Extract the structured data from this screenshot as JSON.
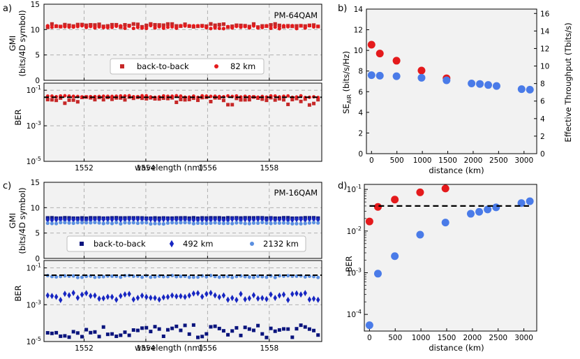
{
  "colors": {
    "red_b2b": "#c62828",
    "red_82": "#e41a1c",
    "blue": "#4a7be8",
    "navy": "#0a147d",
    "darkblue": "#1726c2",
    "lightblue": "#5b8fe0",
    "grid": "#a8a8a8",
    "panel_bg": "#f2f2f2"
  },
  "chart_data": [
    {
      "id": "a_gmi",
      "type": "scatter",
      "panel_label": "a)",
      "annotation": "PM-64QAM",
      "ylabel": "GMI",
      "ylabel2": "(bits/4D symbol)",
      "xlim": [
        1550.7,
        1559.7
      ],
      "ylim": [
        0,
        15
      ],
      "yticks": [
        0,
        5,
        10,
        15
      ],
      "xticks": [
        1552,
        1554,
        1556,
        1558
      ],
      "legend": [
        "back-to-back",
        "82 km"
      ],
      "series": [
        {
          "name": "back-to-back",
          "marker": "square",
          "color_key": "red_b2b",
          "center": 10.8,
          "spread": 0.35
        },
        {
          "name": "82 km",
          "marker": "circle",
          "color_key": "red_82",
          "center": 10.5,
          "spread": 0.3
        }
      ]
    },
    {
      "id": "a_ber",
      "type": "scatter",
      "ylabel": "BER",
      "yscale": "log",
      "ylim_exp": [
        -5,
        -0.6
      ],
      "yticks": [
        "10^-5",
        "10^-3",
        "10^-1"
      ],
      "xticks": [
        1552,
        1554,
        1556,
        1558
      ],
      "xlabel": "wavelength (nm)",
      "threshold": 0.04,
      "series": [
        {
          "name": "back-to-back",
          "marker": "square",
          "color_key": "red_b2b",
          "center_log": -1.48,
          "spread": 0.1
        },
        {
          "name": "82 km",
          "marker": "circle",
          "color_key": "red_82",
          "center_log": -1.36,
          "spread": 0.05
        }
      ]
    },
    {
      "id": "b",
      "type": "scatter",
      "panel_label": "b)",
      "xlabel": "distance (km)",
      "ylabel": "SE_AIR (bits/s/Hz)",
      "ylabel_main": "SE",
      "ylabel_sub": "AIR",
      "ylabel_rest": " (bits/s/Hz)",
      "ylabel_right": "Effective Throughput (Tbits/s)",
      "xlim": [
        -100,
        3250
      ],
      "ylim": [
        0,
        14
      ],
      "yticks": [
        0,
        2,
        4,
        6,
        8,
        10,
        12,
        14
      ],
      "yticks_right": [
        0,
        2,
        4,
        6,
        8,
        10,
        12,
        14,
        16
      ],
      "xticks": [
        0,
        500,
        1000,
        1500,
        2000,
        2500,
        3000
      ],
      "series": [
        {
          "name": "PM-64QAM",
          "color_key": "red_82",
          "x": [
            0,
            164,
            492,
            984,
            1476
          ],
          "y": [
            10.55,
            9.7,
            9.0,
            8.05,
            7.3
          ]
        },
        {
          "name": "PM-16QAM",
          "color_key": "blue",
          "x": [
            0,
            164,
            492,
            984,
            1476,
            1968,
            2132,
            2296,
            2460,
            2952,
            3116
          ],
          "y": [
            7.6,
            7.55,
            7.5,
            7.35,
            7.1,
            6.8,
            6.75,
            6.65,
            6.55,
            6.25,
            6.2
          ]
        }
      ]
    },
    {
      "id": "c_gmi",
      "type": "scatter",
      "panel_label": "c)",
      "annotation": "PM-16QAM",
      "ylabel": "GMI",
      "ylabel2": "(bits/4D symbol)",
      "xlim": [
        1550.7,
        1559.7
      ],
      "ylim": [
        0,
        15
      ],
      "yticks": [
        0,
        5,
        10,
        15
      ],
      "xticks": [
        1552,
        1554,
        1556,
        1558
      ],
      "legend": [
        "back-to-back",
        "492 km",
        "2132 km"
      ],
      "series": [
        {
          "name": "back-to-back",
          "marker": "square",
          "color_key": "navy",
          "center": 7.95,
          "spread": 0.05
        },
        {
          "name": "492 km",
          "marker": "diamond",
          "color_key": "darkblue",
          "center": 7.65,
          "spread": 0.1
        },
        {
          "name": "2132 km",
          "marker": "circle",
          "color_key": "lightblue",
          "center": 6.95,
          "spread": 0.15
        }
      ]
    },
    {
      "id": "c_ber",
      "type": "scatter",
      "ylabel": "BER",
      "yscale": "log",
      "ylim_exp": [
        -5,
        -0.6
      ],
      "yticks": [
        "10^-5",
        "10^-3",
        "10^-1"
      ],
      "xticks": [
        1552,
        1554,
        1556,
        1558
      ],
      "xlabel": "wavelength (nm)",
      "threshold": 0.04,
      "series": [
        {
          "name": "back-to-back",
          "marker": "square",
          "color_key": "navy",
          "center_log": -4.45,
          "spread": 0.35
        },
        {
          "name": "492 km",
          "marker": "diamond",
          "color_key": "darkblue",
          "center_log": -2.55,
          "spread": 0.2
        },
        {
          "name": "2132 km",
          "marker": "circle",
          "color_key": "lightblue",
          "center_log": -1.47,
          "spread": 0.05
        }
      ]
    },
    {
      "id": "d",
      "type": "scatter",
      "panel_label": "d)",
      "xlabel": "distance (km)",
      "ylabel": "BER",
      "yscale": "log",
      "xlim": [
        -100,
        3250
      ],
      "ylim_exp": [
        -4.4,
        -0.88
      ],
      "yticks": [
        "10^-4",
        "10^-3",
        "10^-2",
        "10^-1"
      ],
      "xticks": [
        0,
        500,
        1000,
        1500,
        2000,
        2500,
        3000
      ],
      "threshold": 0.04,
      "threshold_xrange": [
        0,
        3100
      ],
      "series": [
        {
          "name": "PM-64QAM",
          "color_key": "red_82",
          "x": [
            0,
            164,
            492,
            984,
            1476
          ],
          "y": [
            0.017,
            0.038,
            0.057,
            0.085,
            0.105
          ]
        },
        {
          "name": "PM-16QAM",
          "color_key": "blue",
          "x": [
            0,
            164,
            492,
            984,
            1476,
            1968,
            2132,
            2296,
            2460,
            2952,
            3116
          ],
          "y": [
            5.5e-05,
            0.00095,
            0.0025,
            0.0082,
            0.016,
            0.026,
            0.029,
            0.033,
            0.037,
            0.047,
            0.052
          ]
        }
      ]
    }
  ]
}
